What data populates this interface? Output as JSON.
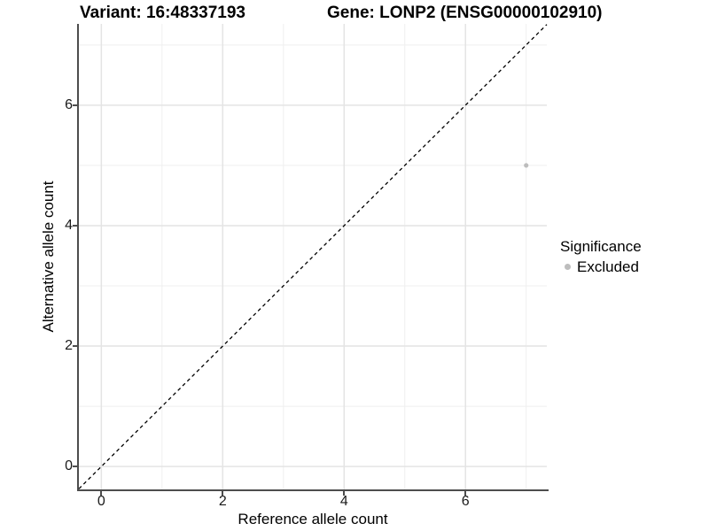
{
  "titles": {
    "variant": "Variant: 16:48337193",
    "gene": "Gene: LONP2 (ENSG00000102910)"
  },
  "chart_data": {
    "type": "scatter",
    "title_left": "Variant: 16:48337193",
    "title_right": "Gene: LONP2 (ENSG00000102910)",
    "xlabel": "Reference allele count",
    "ylabel": "Alternative allele count",
    "xlim": [
      -0.37,
      7.34
    ],
    "ylim": [
      -0.38,
      7.35
    ],
    "xticks": [
      0,
      2,
      4,
      6
    ],
    "yticks": [
      0,
      2,
      4,
      6
    ],
    "xticks_minor": [
      1,
      3,
      5,
      7
    ],
    "yticks_minor": [
      1,
      3,
      5,
      7
    ],
    "grid": true,
    "legend_position": "right",
    "identity_line": {
      "type": "dashed",
      "color": "#000000",
      "from": [
        -0.37,
        -0.37
      ],
      "to": [
        7.34,
        7.34
      ]
    },
    "series": [
      {
        "name": "Excluded",
        "color": "#bdbdbd",
        "points": [
          {
            "x": 7,
            "y": 5
          }
        ]
      }
    ],
    "legend": {
      "title": "Significance",
      "entries": [
        {
          "label": "Excluded",
          "color": "#bdbdbd",
          "marker": "circle"
        }
      ]
    }
  },
  "style": {
    "background": "#ffffff",
    "axis_color": "#4d4d4d",
    "grid_major_color": "#e4e4e4",
    "grid_minor_color": "#efefef",
    "point_color": "#bdbdbd",
    "identity_line_color": "#000000",
    "text_color": "#000000"
  }
}
